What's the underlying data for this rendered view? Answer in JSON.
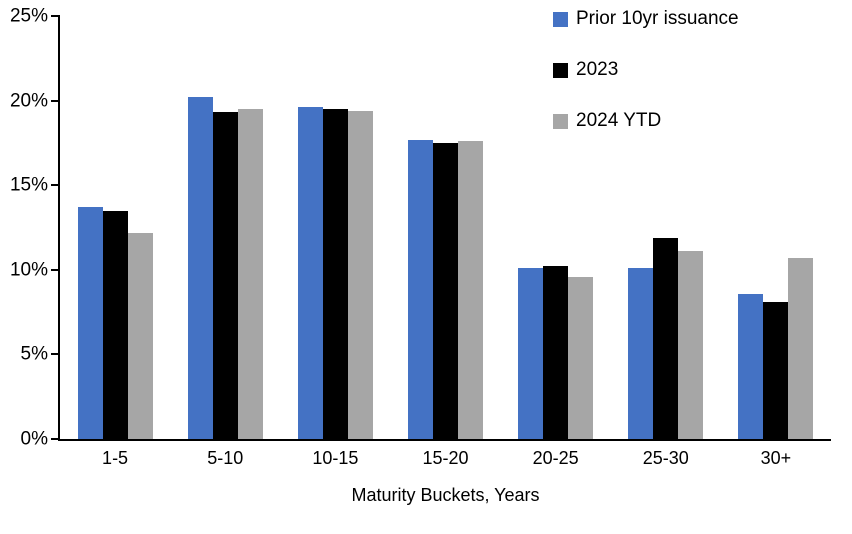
{
  "chart_data": {
    "type": "bar",
    "title": "",
    "xlabel": "Maturity Buckets, Years",
    "ylabel": "",
    "ylim": [
      0,
      25
    ],
    "ytick_values": [
      0,
      5,
      10,
      15,
      20,
      25
    ],
    "ytick_labels": [
      "0%",
      "5%",
      "10%",
      "15%",
      "20%",
      "25%"
    ],
    "categories": [
      "1-5",
      "5-10",
      "10-15",
      "15-20",
      "20-25",
      "25-30",
      "30+"
    ],
    "series": [
      {
        "name": "Prior 10yr issuance",
        "color": "#4472C4",
        "values": [
          13.7,
          20.2,
          19.6,
          17.7,
          10.1,
          10.1,
          8.6
        ]
      },
      {
        "name": "2023",
        "color": "#000000",
        "values": [
          13.5,
          19.3,
          19.5,
          17.5,
          10.2,
          11.9,
          8.1
        ]
      },
      {
        "name": "2024 YTD",
        "color": "#A6A6A6",
        "values": [
          12.2,
          19.5,
          19.4,
          17.6,
          9.6,
          11.1,
          10.7
        ]
      }
    ],
    "legend_position": "top-right",
    "grid": false,
    "background": "#FFFFFF",
    "axis_color": "#000000"
  }
}
